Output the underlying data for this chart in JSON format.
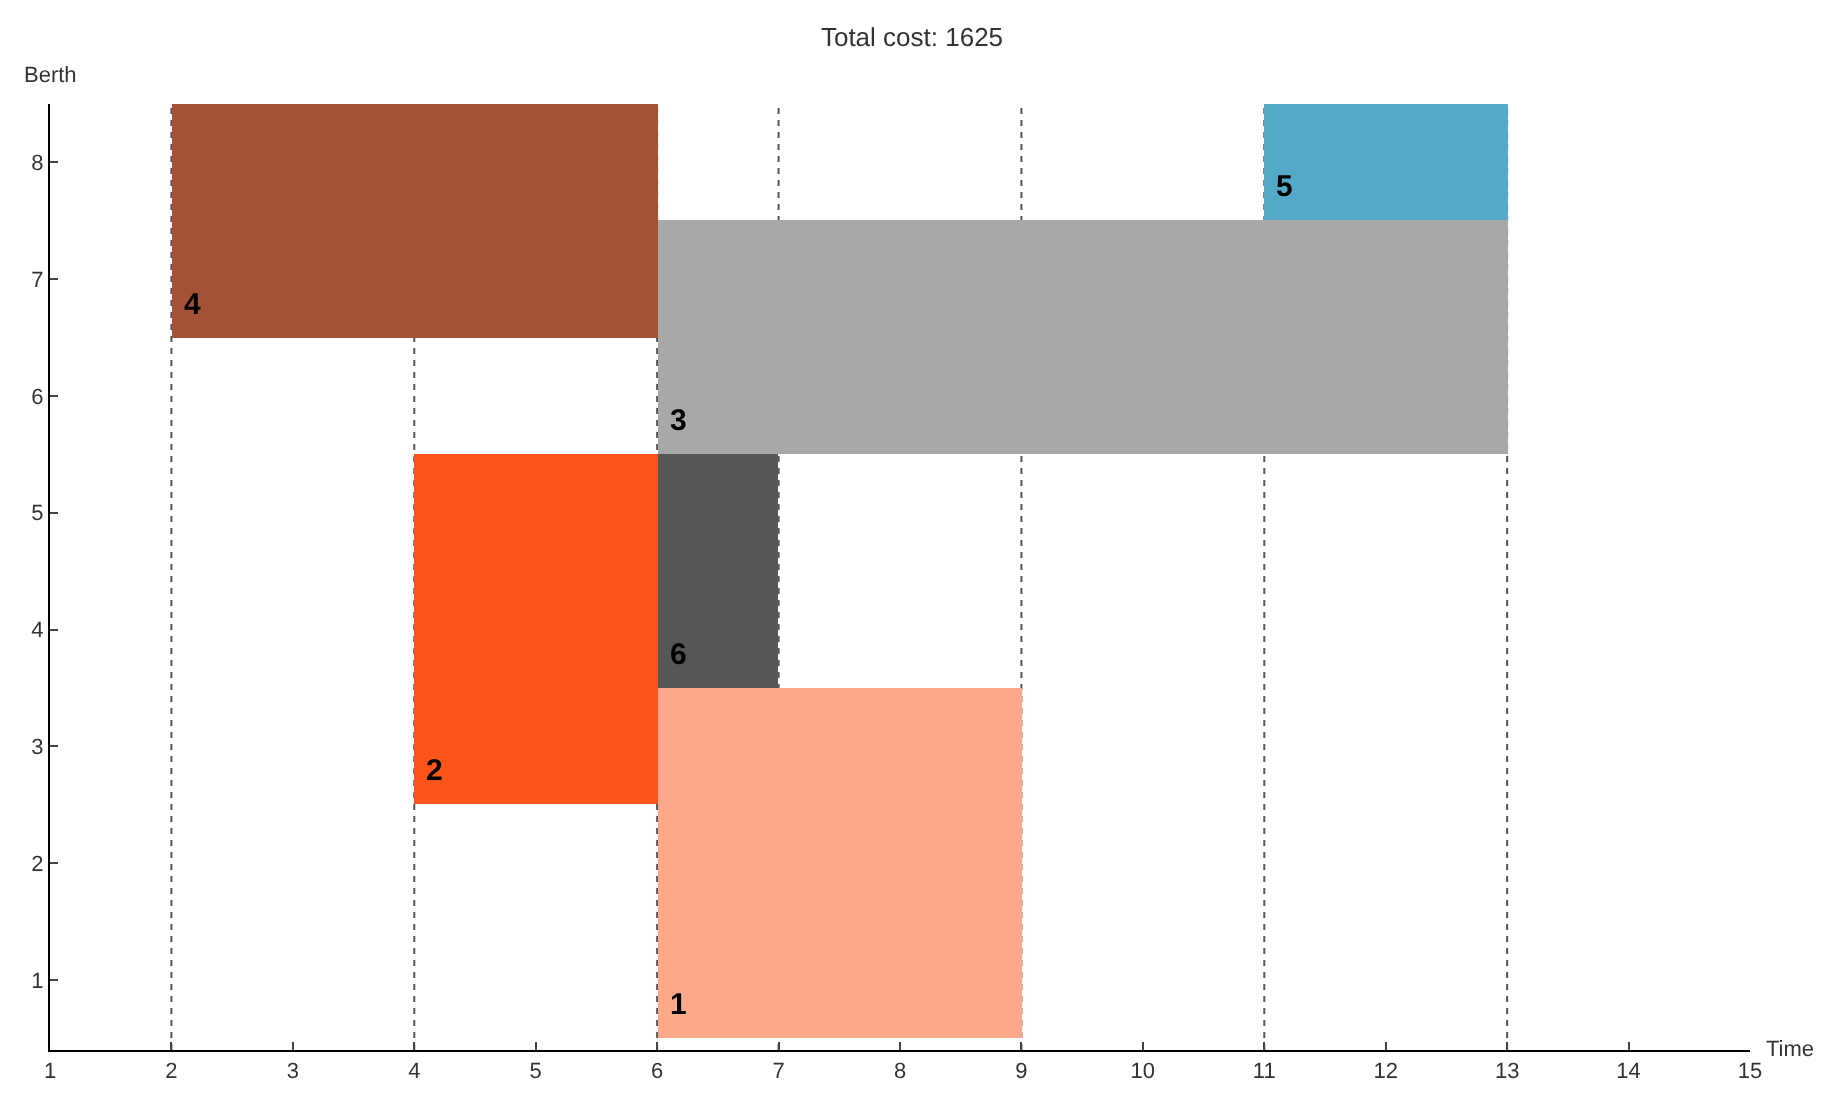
{
  "chart_data": {
    "type": "bar",
    "orientation": "horizontal",
    "title": "Total cost: 1625",
    "xlabel": "Time",
    "ylabel": "Berth",
    "categories": [
      "8",
      "7",
      "6",
      "5",
      "4",
      "3",
      "2",
      "1"
    ],
    "xlim": [
      1,
      15
    ],
    "xticks": [
      1,
      2,
      3,
      4,
      5,
      6,
      7,
      8,
      9,
      10,
      11,
      12,
      13,
      14,
      15
    ],
    "grid": false,
    "legend": false,
    "series": [
      {
        "name": "1",
        "color": "#fca88a",
        "values": [
          null,
          null,
          null,
          null,
          null,
          3,
          3,
          3
        ],
        "base": [
          null,
          null,
          null,
          null,
          null,
          6,
          6,
          6
        ]
      },
      {
        "name": "2",
        "color": "#fd5519",
        "values": [
          null,
          null,
          null,
          2,
          2,
          2,
          null,
          null
        ],
        "base": [
          null,
          null,
          null,
          4,
          4,
          4,
          null,
          null
        ]
      },
      {
        "name": "3",
        "color": "#a8a8a8",
        "values": [
          null,
          7,
          7,
          null,
          null,
          null,
          null,
          null
        ],
        "base": [
          null,
          6,
          6,
          null,
          null,
          null,
          null,
          null
        ]
      },
      {
        "name": "4",
        "color": "#a55336",
        "values": [
          4,
          4,
          null,
          null,
          null,
          null,
          null,
          null
        ],
        "base": [
          2,
          2,
          null,
          null,
          null,
          null,
          null,
          null
        ]
      },
      {
        "name": "5",
        "color": "#55a9c8",
        "values": [
          2,
          null,
          null,
          null,
          null,
          null,
          null,
          null
        ],
        "base": [
          11,
          null,
          null,
          null,
          null,
          null,
          null,
          null
        ]
      },
      {
        "name": "6",
        "color": "#565656",
        "values": [
          null,
          null,
          null,
          1,
          1,
          null,
          null,
          null
        ],
        "base": [
          null,
          null,
          null,
          6,
          6,
          null,
          null,
          null
        ]
      }
    ],
    "ref_lines": [
      {
        "axis": "x",
        "value": 2,
        "line_style": "dotted",
        "color": "#555555"
      },
      {
        "axis": "x",
        "value": 4,
        "line_style": "dotted",
        "color": "#555555"
      },
      {
        "axis": "x",
        "value": 6,
        "line_style": "dotted",
        "color": "#555555"
      },
      {
        "axis": "x",
        "value": 7,
        "line_style": "dotted",
        "color": "#555555"
      },
      {
        "axis": "x",
        "value": 9,
        "line_style": "dotted",
        "color": "#555555"
      },
      {
        "axis": "x",
        "value": 11,
        "line_style": "dotted",
        "color": "#555555"
      },
      {
        "axis": "x",
        "value": 13,
        "line_style": "dotted",
        "color": "#555555"
      }
    ]
  }
}
